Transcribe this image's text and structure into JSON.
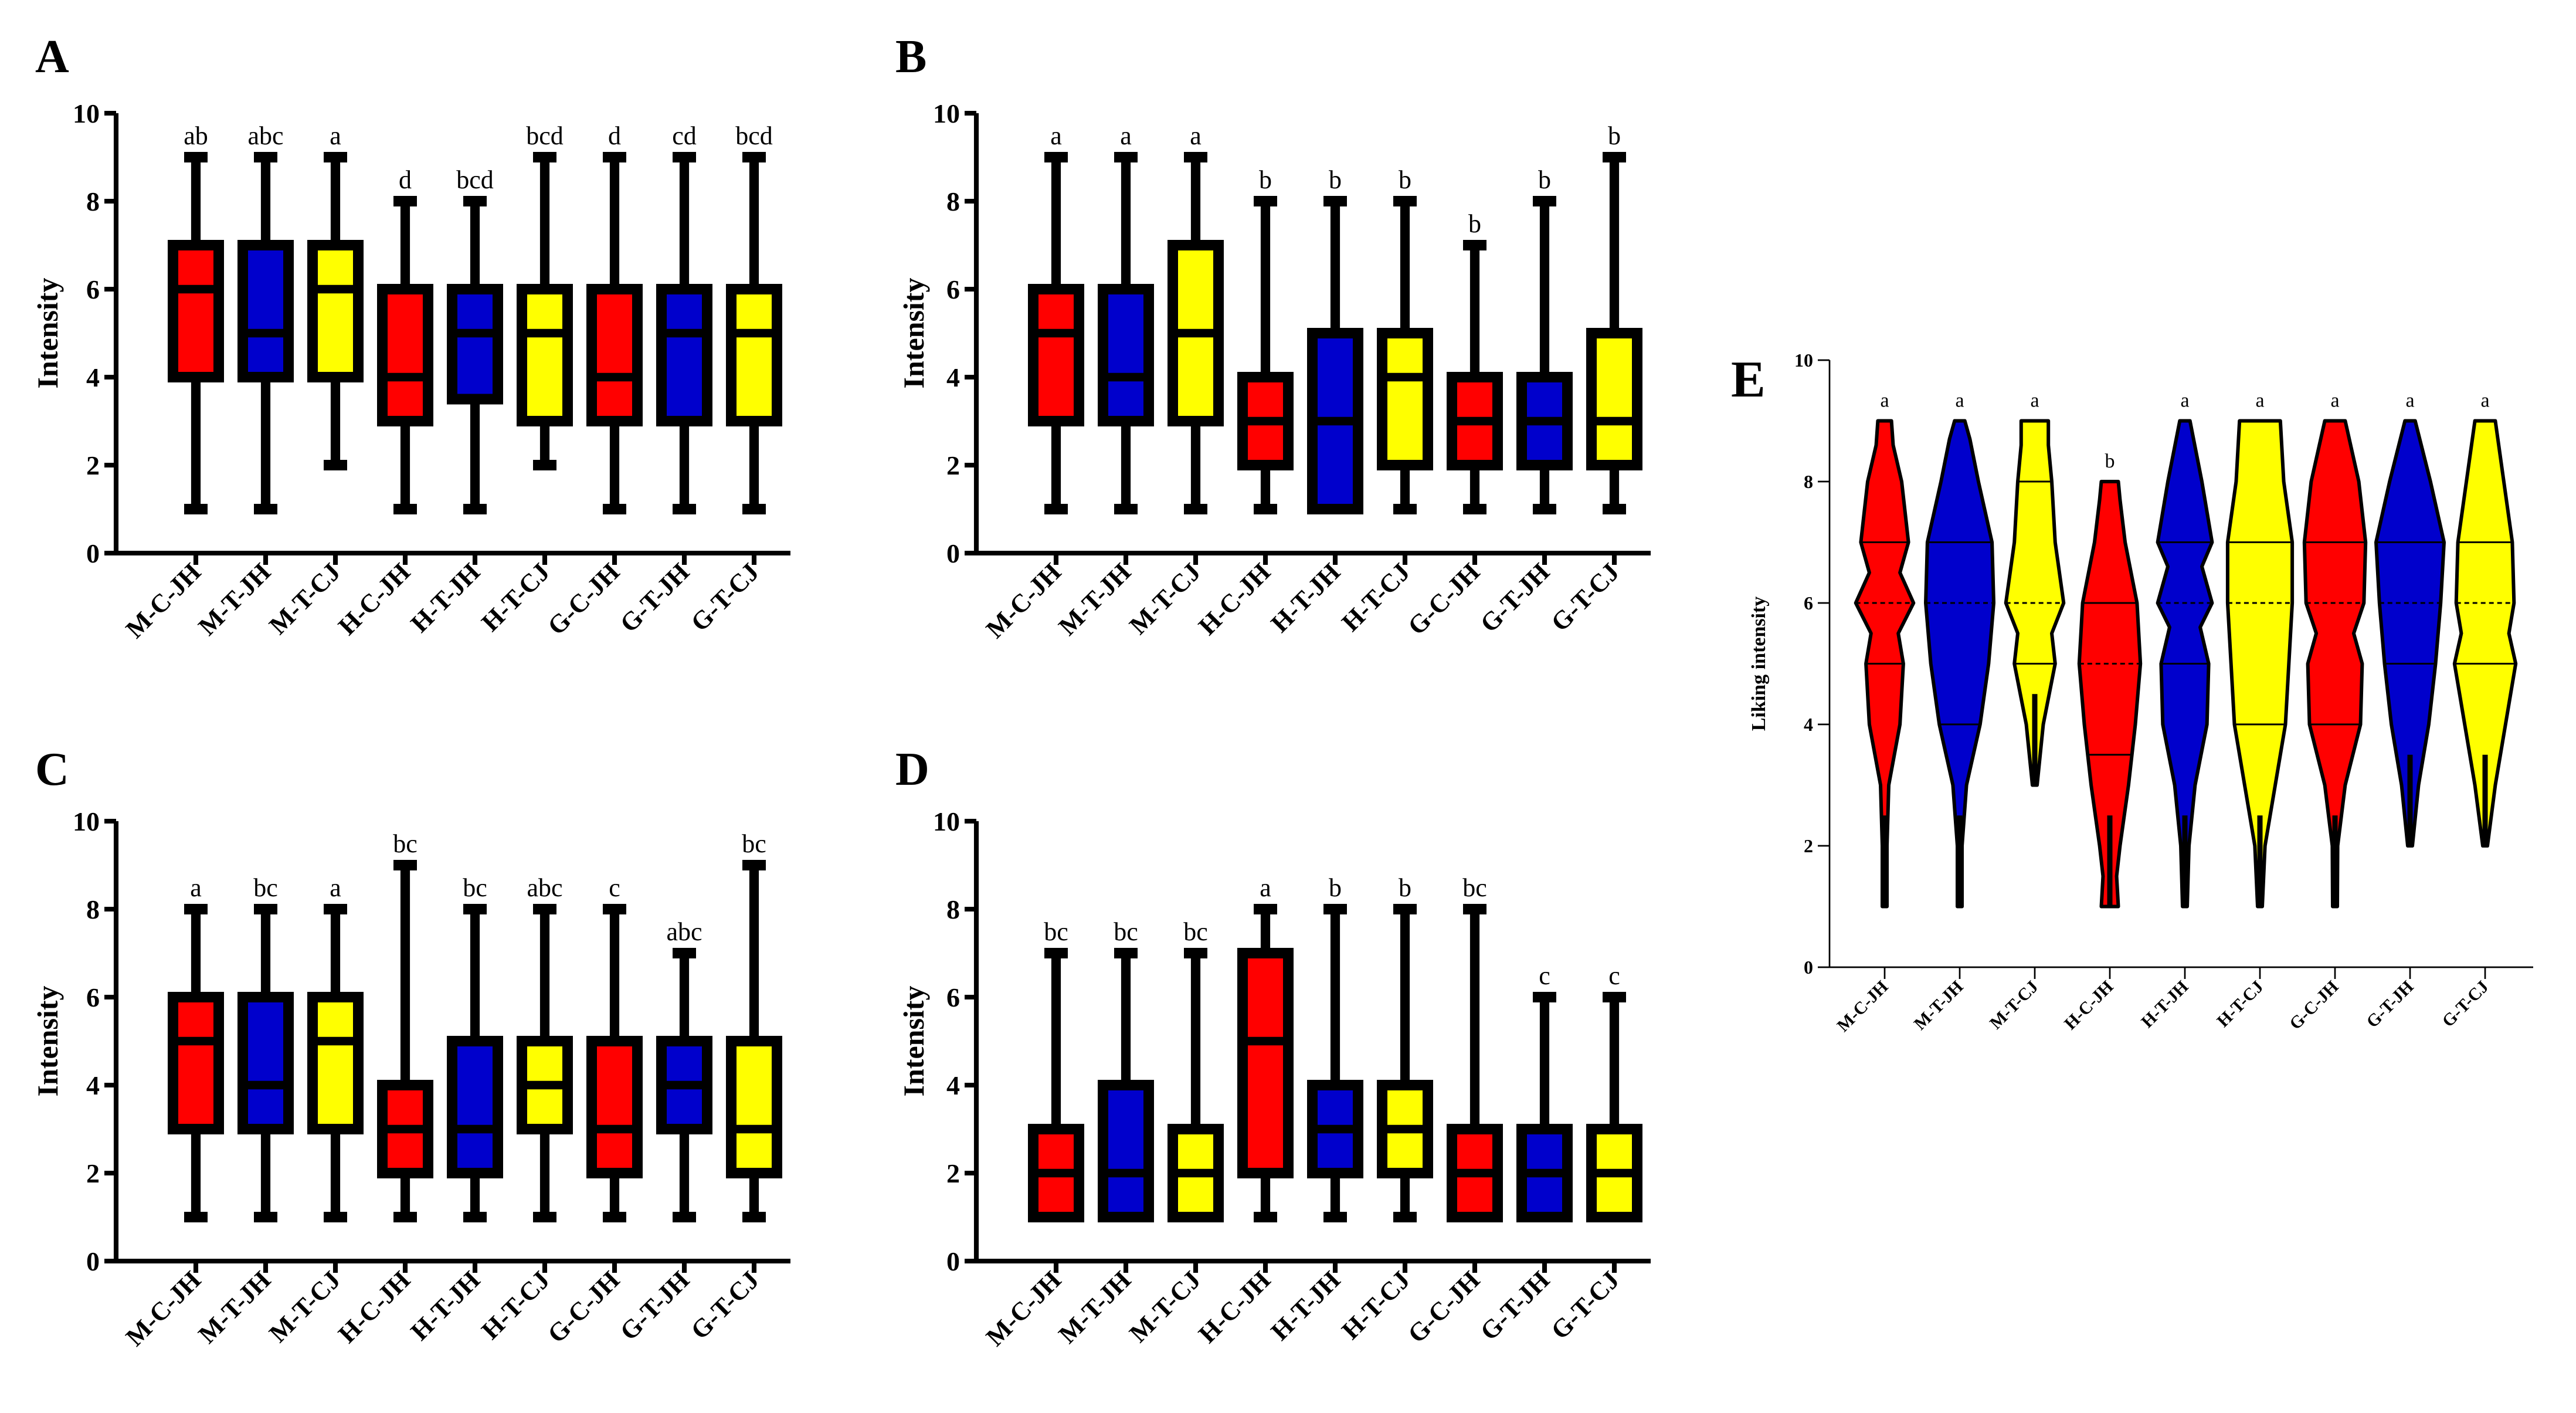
{
  "colors": {
    "red": "#ff0000",
    "blue": "#0000cc",
    "yellow": "#ffff00",
    "black": "#000000"
  },
  "chart_data": [
    {
      "panel": "A",
      "type": "box",
      "ylabel": "Intensity",
      "ylim": [
        0,
        10
      ],
      "yticks": [
        0,
        2,
        4,
        6,
        8,
        10
      ],
      "categories": [
        "M-C-JH",
        "M-T-JH",
        "M-T-CJ",
        "H-C-JH",
        "H-T-JH",
        "H-T-CJ",
        "G-C-JH",
        "G-T-JH",
        "G-T-CJ"
      ],
      "fill": [
        "red",
        "blue",
        "yellow",
        "red",
        "blue",
        "yellow",
        "red",
        "blue",
        "yellow"
      ],
      "boxes": [
        {
          "min": 1,
          "q1": 4,
          "median": 6,
          "q3": 7,
          "max": 9
        },
        {
          "min": 1,
          "q1": 4,
          "median": 5,
          "q3": 7,
          "max": 9
        },
        {
          "min": 2,
          "q1": 4,
          "median": 6,
          "q3": 7,
          "max": 9
        },
        {
          "min": 1,
          "q1": 3,
          "median": 4,
          "q3": 6,
          "max": 8
        },
        {
          "min": 1,
          "q1": 3.5,
          "median": 5,
          "q3": 6,
          "max": 8
        },
        {
          "min": 2,
          "q1": 3,
          "median": 5,
          "q3": 6,
          "max": 9
        },
        {
          "min": 1,
          "q1": 3,
          "median": 4,
          "q3": 6,
          "max": 9
        },
        {
          "min": 1,
          "q1": 3,
          "median": 5,
          "q3": 6,
          "max": 9
        },
        {
          "min": 1,
          "q1": 3,
          "median": 5,
          "q3": 6,
          "max": 9
        }
      ],
      "letters": [
        "ab",
        "abc",
        "a",
        "d",
        "bcd",
        "bcd",
        "d",
        "cd",
        "bcd"
      ]
    },
    {
      "panel": "B",
      "type": "box",
      "ylabel": "Intensity",
      "ylim": [
        0,
        10
      ],
      "yticks": [
        0,
        2,
        4,
        6,
        8,
        10
      ],
      "categories": [
        "M-C-JH",
        "M-T-JH",
        "M-T-CJ",
        "H-C-JH",
        "H-T-JH",
        "H-T-CJ",
        "G-C-JH",
        "G-T-JH",
        "G-T-CJ"
      ],
      "fill": [
        "red",
        "blue",
        "yellow",
        "red",
        "blue",
        "yellow",
        "red",
        "blue",
        "yellow"
      ],
      "boxes": [
        {
          "min": 1,
          "q1": 3,
          "median": 5,
          "q3": 6,
          "max": 9
        },
        {
          "min": 1,
          "q1": 3,
          "median": 4,
          "q3": 6,
          "max": 9
        },
        {
          "min": 1,
          "q1": 3,
          "median": 5,
          "q3": 7,
          "max": 9
        },
        {
          "min": 1,
          "q1": 2,
          "median": 3,
          "q3": 4,
          "max": 8
        },
        {
          "min": 1,
          "q1": 1,
          "median": 3,
          "q3": 5,
          "max": 8
        },
        {
          "min": 1,
          "q1": 2,
          "median": 4,
          "q3": 5,
          "max": 8
        },
        {
          "min": 1,
          "q1": 2,
          "median": 3,
          "q3": 4,
          "max": 7
        },
        {
          "min": 1,
          "q1": 2,
          "median": 3,
          "q3": 4,
          "max": 8
        },
        {
          "min": 1,
          "q1": 2,
          "median": 3,
          "q3": 5,
          "max": 9
        }
      ],
      "letters": [
        "a",
        "a",
        "a",
        "b",
        "b",
        "b",
        "b",
        "b",
        "b"
      ]
    },
    {
      "panel": "C",
      "type": "box",
      "ylabel": "Intensity",
      "ylim": [
        0,
        10
      ],
      "yticks": [
        0,
        2,
        4,
        6,
        8,
        10
      ],
      "categories": [
        "M-C-JH",
        "M-T-JH",
        "M-T-CJ",
        "H-C-JH",
        "H-T-JH",
        "H-T-CJ",
        "G-C-JH",
        "G-T-JH",
        "G-T-CJ"
      ],
      "fill": [
        "red",
        "blue",
        "yellow",
        "red",
        "blue",
        "yellow",
        "red",
        "blue",
        "yellow"
      ],
      "boxes": [
        {
          "min": 1,
          "q1": 3,
          "median": 5,
          "q3": 6,
          "max": 8
        },
        {
          "min": 1,
          "q1": 3,
          "median": 4,
          "q3": 6,
          "max": 8
        },
        {
          "min": 1,
          "q1": 3,
          "median": 5,
          "q3": 6,
          "max": 8
        },
        {
          "min": 1,
          "q1": 2,
          "median": 3,
          "q3": 4,
          "max": 9
        },
        {
          "min": 1,
          "q1": 2,
          "median": 3,
          "q3": 5,
          "max": 8
        },
        {
          "min": 1,
          "q1": 3,
          "median": 4,
          "q3": 5,
          "max": 8
        },
        {
          "min": 1,
          "q1": 2,
          "median": 3,
          "q3": 5,
          "max": 8
        },
        {
          "min": 1,
          "q1": 3,
          "median": 4,
          "q3": 5,
          "max": 7
        },
        {
          "min": 1,
          "q1": 2,
          "median": 3,
          "q3": 5,
          "max": 9
        }
      ],
      "letters": [
        "a",
        "bc",
        "a",
        "bc",
        "bc",
        "abc",
        "c",
        "abc",
        "bc"
      ]
    },
    {
      "panel": "D",
      "type": "box",
      "ylabel": "Intensity",
      "ylim": [
        0,
        10
      ],
      "yticks": [
        0,
        2,
        4,
        6,
        8,
        10
      ],
      "categories": [
        "M-C-JH",
        "M-T-JH",
        "M-T-CJ",
        "H-C-JH",
        "H-T-JH",
        "H-T-CJ",
        "G-C-JH",
        "G-T-JH",
        "G-T-CJ"
      ],
      "fill": [
        "red",
        "blue",
        "yellow",
        "red",
        "blue",
        "yellow",
        "red",
        "blue",
        "yellow"
      ],
      "boxes": [
        {
          "min": 1,
          "q1": 1,
          "median": 2,
          "q3": 3,
          "max": 7
        },
        {
          "min": 1,
          "q1": 1,
          "median": 2,
          "q3": 4,
          "max": 7
        },
        {
          "min": 1,
          "q1": 1,
          "median": 2,
          "q3": 3,
          "max": 7
        },
        {
          "min": 1,
          "q1": 2,
          "median": 5,
          "q3": 7,
          "max": 8
        },
        {
          "min": 1,
          "q1": 2,
          "median": 3,
          "q3": 4,
          "max": 8
        },
        {
          "min": 1,
          "q1": 2,
          "median": 3,
          "q3": 4,
          "max": 8
        },
        {
          "min": 1,
          "q1": 1,
          "median": 2,
          "q3": 3,
          "max": 8
        },
        {
          "min": 1,
          "q1": 1,
          "median": 2,
          "q3": 3,
          "max": 6
        },
        {
          "min": 1,
          "q1": 1,
          "median": 2,
          "q3": 3,
          "max": 6
        }
      ],
      "letters": [
        "bc",
        "bc",
        "bc",
        "a",
        "b",
        "b",
        "bc",
        "c",
        "c"
      ]
    },
    {
      "panel": "E",
      "type": "violin",
      "ylabel": "Liking intensity",
      "ylim": [
        0,
        10
      ],
      "yticks": [
        0,
        2,
        4,
        6,
        8,
        10
      ],
      "categories": [
        "M-C-JH",
        "M-T-JH",
        "M-T-CJ",
        "H-C-JH",
        "H-T-JH",
        "H-T-CJ",
        "G-C-JH",
        "G-T-JH",
        "G-T-CJ"
      ],
      "fill": [
        "red",
        "blue",
        "yellow",
        "red",
        "blue",
        "yellow",
        "red",
        "blue",
        "yellow"
      ],
      "violins": [
        {
          "min": 1,
          "max": 9,
          "q1": 5,
          "median": 6,
          "q3": 7,
          "profile": [
            [
              1,
              0.03
            ],
            [
              2,
              0.04
            ],
            [
              3,
              0.12
            ],
            [
              4,
              0.45
            ],
            [
              5,
              0.55
            ],
            [
              5.5,
              0.4
            ],
            [
              6,
              0.85
            ],
            [
              6.5,
              0.45
            ],
            [
              7,
              0.7
            ],
            [
              8,
              0.5
            ],
            [
              8.6,
              0.25
            ],
            [
              9,
              0.2
            ]
          ]
        },
        {
          "min": 1,
          "max": 9,
          "q1": 4,
          "median": 6,
          "q3": 7,
          "profile": [
            [
              1,
              0.03
            ],
            [
              2,
              0.05
            ],
            [
              3,
              0.2
            ],
            [
              4,
              0.6
            ],
            [
              5,
              0.85
            ],
            [
              6,
              1.0
            ],
            [
              7,
              0.95
            ],
            [
              8,
              0.55
            ],
            [
              8.7,
              0.3
            ],
            [
              9,
              0.15
            ]
          ]
        },
        {
          "min": 3,
          "max": 9,
          "q1": 5,
          "median": 6,
          "q3": 8,
          "profile": [
            [
              3,
              0.05
            ],
            [
              4,
              0.25
            ],
            [
              5,
              0.6
            ],
            [
              5.5,
              0.5
            ],
            [
              6,
              0.85
            ],
            [
              7,
              0.6
            ],
            [
              8,
              0.5
            ],
            [
              8.6,
              0.4
            ],
            [
              9,
              0.4
            ]
          ]
        },
        {
          "min": 1,
          "max": 8,
          "q1": 3.5,
          "median": 5,
          "q3": 6,
          "profile": [
            [
              1,
              0.25
            ],
            [
              1.5,
              0.2
            ],
            [
              2,
              0.3
            ],
            [
              3,
              0.55
            ],
            [
              4,
              0.75
            ],
            [
              5,
              0.9
            ],
            [
              6,
              0.8
            ],
            [
              7,
              0.45
            ],
            [
              7.7,
              0.3
            ],
            [
              8,
              0.25
            ]
          ]
        },
        {
          "min": 1,
          "max": 9,
          "q1": 5,
          "median": 6,
          "q3": 7,
          "profile": [
            [
              1,
              0.03
            ],
            [
              2,
              0.12
            ],
            [
              3,
              0.3
            ],
            [
              4,
              0.65
            ],
            [
              5,
              0.7
            ],
            [
              5.6,
              0.45
            ],
            [
              6,
              0.8
            ],
            [
              6.6,
              0.5
            ],
            [
              7,
              0.8
            ],
            [
              8,
              0.5
            ],
            [
              9,
              0.15
            ]
          ]
        },
        {
          "min": 1,
          "max": 9,
          "q1": 4,
          "median": 6,
          "q3": 7,
          "profile": [
            [
              1,
              0.05
            ],
            [
              2,
              0.15
            ],
            [
              3,
              0.45
            ],
            [
              4,
              0.75
            ],
            [
              5,
              0.85
            ],
            [
              6,
              0.95
            ],
            [
              7,
              0.95
            ],
            [
              8,
              0.7
            ],
            [
              9,
              0.6
            ]
          ]
        },
        {
          "min": 1,
          "max": 9,
          "q1": 4,
          "median": 6,
          "q3": 7,
          "profile": [
            [
              1,
              0.03
            ],
            [
              2,
              0.08
            ],
            [
              3,
              0.3
            ],
            [
              4,
              0.75
            ],
            [
              5,
              0.8
            ],
            [
              5.5,
              0.55
            ],
            [
              6,
              0.85
            ],
            [
              7,
              0.9
            ],
            [
              8,
              0.7
            ],
            [
              9,
              0.3
            ]
          ]
        },
        {
          "min": 2,
          "max": 9,
          "q1": 5,
          "median": 6,
          "q3": 7,
          "profile": [
            [
              2,
              0.05
            ],
            [
              3,
              0.25
            ],
            [
              4,
              0.55
            ],
            [
              5,
              0.75
            ],
            [
              6,
              0.9
            ],
            [
              7,
              1.0
            ],
            [
              8,
              0.6
            ],
            [
              9,
              0.15
            ]
          ]
        },
        {
          "min": 2,
          "max": 9,
          "q1": 5,
          "median": 6,
          "q3": 7,
          "profile": [
            [
              2,
              0.05
            ],
            [
              3,
              0.3
            ],
            [
              4,
              0.6
            ],
            [
              5,
              0.9
            ],
            [
              5.5,
              0.7
            ],
            [
              6,
              0.85
            ],
            [
              7,
              0.8
            ],
            [
              8,
              0.55
            ],
            [
              9,
              0.3
            ]
          ]
        }
      ],
      "letters": [
        "a",
        "a",
        "a",
        "b",
        "a",
        "a",
        "a",
        "a",
        "a"
      ]
    }
  ]
}
